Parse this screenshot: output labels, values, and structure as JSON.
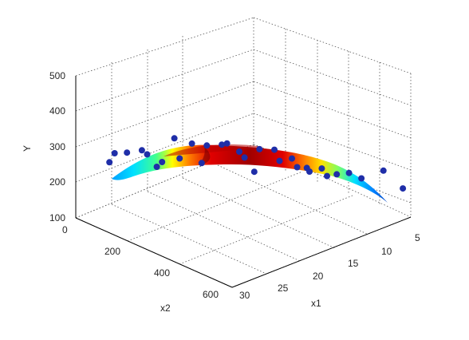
{
  "chart_data": {
    "type": "3d-surface-scatter",
    "title": "",
    "xlabel": "x1",
    "ylabel": "x2",
    "zlabel": "Y",
    "xlim": [
      5,
      30
    ],
    "ylim": [
      0,
      600
    ],
    "zlim": [
      100,
      500
    ],
    "x_ticks": [
      "5",
      "10",
      "15",
      "20",
      "25",
      "30"
    ],
    "y_ticks": [
      "0",
      "200",
      "400",
      "600"
    ],
    "z_ticks": [
      "100",
      "200",
      "300",
      "400",
      "500"
    ],
    "grid": true,
    "colormap": "jet",
    "surface": {
      "description_values": "fitted surface Y(x1, x2), thin ribbon along x1 ≈ 12–28 and x2 ≈ 0–600",
      "x1_range": [
        12,
        28
      ],
      "x2_range": [
        0,
        600
      ],
      "y_min": 215,
      "y_max": 300
    },
    "scatter": {
      "name": "",
      "color": "#1f2ea8",
      "points": [
        {
          "x1": 26,
          "x2": 20,
          "y": 230
        },
        {
          "x1": 26,
          "x2": 40,
          "y": 262
        },
        {
          "x1": 25,
          "x2": 60,
          "y": 262
        },
        {
          "x1": 24,
          "x2": 90,
          "y": 270
        },
        {
          "x1": 24,
          "x2": 110,
          "y": 265
        },
        {
          "x1": 23,
          "x2": 120,
          "y": 225
        },
        {
          "x1": 23,
          "x2": 140,
          "y": 245
        },
        {
          "x1": 22,
          "x2": 160,
          "y": 310
        },
        {
          "x1": 22,
          "x2": 180,
          "y": 260
        },
        {
          "x1": 21,
          "x2": 200,
          "y": 300
        },
        {
          "x1": 20,
          "x2": 210,
          "y": 240
        },
        {
          "x1": 20,
          "x2": 230,
          "y": 296
        },
        {
          "x1": 19,
          "x2": 260,
          "y": 300
        },
        {
          "x1": 19,
          "x2": 280,
          "y": 310
        },
        {
          "x1": 18,
          "x2": 300,
          "y": 285
        },
        {
          "x1": 18,
          "x2": 320,
          "y": 275
        },
        {
          "x1": 17,
          "x2": 330,
          "y": 230
        },
        {
          "x1": 17,
          "x2": 350,
          "y": 300
        },
        {
          "x1": 16,
          "x2": 380,
          "y": 300
        },
        {
          "x1": 16,
          "x2": 400,
          "y": 275
        },
        {
          "x1": 15,
          "x2": 420,
          "y": 280
        },
        {
          "x1": 15,
          "x2": 440,
          "y": 262
        },
        {
          "x1": 14,
          "x2": 450,
          "y": 255
        },
        {
          "x1": 14,
          "x2": 460,
          "y": 248
        },
        {
          "x1": 13,
          "x2": 480,
          "y": 255
        },
        {
          "x1": 13,
          "x2": 500,
          "y": 240
        },
        {
          "x1": 12,
          "x2": 510,
          "y": 240
        },
        {
          "x1": 11,
          "x2": 530,
          "y": 242
        },
        {
          "x1": 10,
          "x2": 550,
          "y": 225
        },
        {
          "x1": 8,
          "x2": 580,
          "y": 240
        },
        {
          "x1": 6,
          "x2": 600,
          "y": 180
        }
      ]
    }
  }
}
